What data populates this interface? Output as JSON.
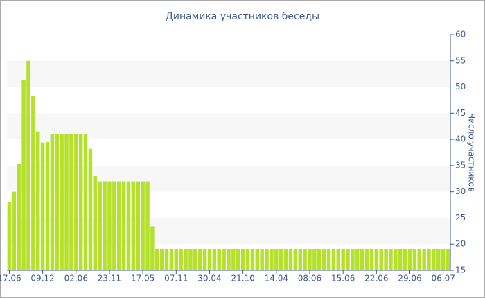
{
  "chart_data": {
    "type": "bar",
    "title": "Динамика участников беседы",
    "y_label": "Число участников",
    "categories": [
      "17.06",
      null,
      null,
      null,
      null,
      null,
      null,
      "09.12",
      null,
      null,
      null,
      null,
      null,
      null,
      "02.06",
      null,
      null,
      null,
      null,
      null,
      null,
      "23.11",
      null,
      null,
      null,
      null,
      null,
      null,
      "17.05",
      null,
      null,
      null,
      null,
      null,
      null,
      "07.11",
      null,
      null,
      null,
      null,
      null,
      null,
      "30.04",
      null,
      null,
      null,
      null,
      null,
      null,
      "21.10",
      null,
      null,
      null,
      null,
      null,
      null,
      "14.04",
      null,
      null,
      null,
      null,
      null,
      null,
      "08.06",
      null,
      null,
      null,
      null,
      null,
      null,
      "15.06",
      null,
      null,
      null,
      null,
      null,
      null,
      "22.06",
      null,
      null,
      null,
      null,
      null,
      null,
      "29.06",
      null,
      null,
      null,
      null,
      null,
      null,
      "06.07",
      null
    ],
    "values": [
      28,
      30,
      35.3,
      51.3,
      55,
      48.3,
      41.5,
      39.4,
      39.5,
      41,
      41,
      41,
      41,
      41,
      41,
      41,
      41,
      38.2,
      33,
      32,
      32,
      32,
      32,
      32,
      32,
      32,
      32,
      32,
      32,
      32,
      23.4,
      19,
      19,
      19,
      19,
      19,
      19,
      19,
      19,
      19,
      19,
      19,
      19,
      19,
      19,
      19,
      19,
      19,
      19,
      19,
      19,
      19,
      19,
      19,
      19,
      19,
      19,
      19,
      19,
      19,
      19,
      19,
      19,
      19,
      19,
      19,
      19,
      19,
      19,
      19,
      19,
      19,
      19,
      19,
      19,
      19,
      19,
      19,
      19,
      19,
      19,
      19,
      19,
      19,
      19,
      19,
      19,
      19,
      19,
      19,
      19,
      19,
      19
    ],
    "color": "#b5e12c",
    "ylim": [
      15,
      60
    ],
    "yticks": [
      15,
      20,
      25,
      30,
      35,
      40,
      45,
      50,
      55,
      60
    ],
    "y_axis_side": "right"
  }
}
